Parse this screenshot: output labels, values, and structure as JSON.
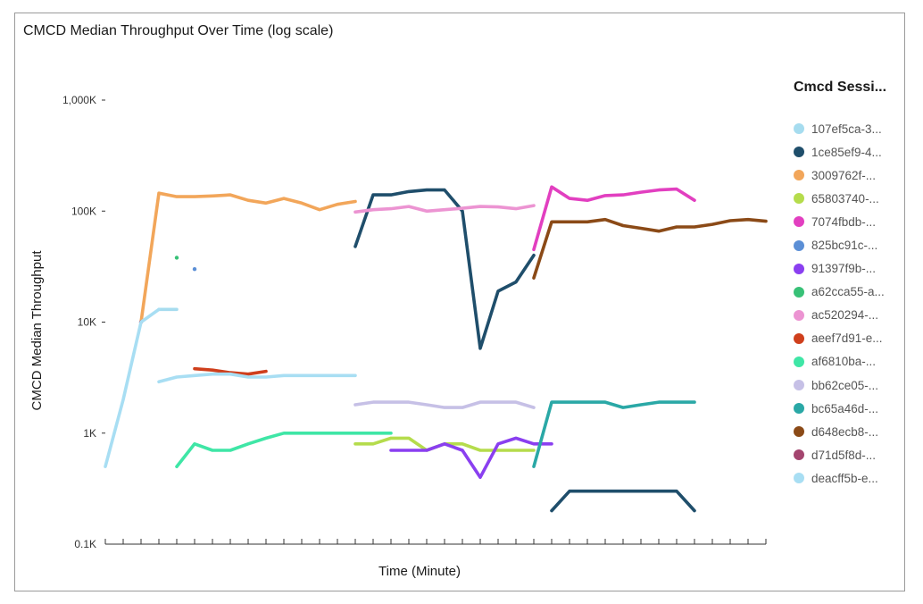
{
  "chart_data": {
    "type": "line",
    "title": "CMCD Median Throughput Over Time (log scale)",
    "xlabel": "Time (Minute)",
    "ylabel": "CMCD Median Throughput",
    "y_scale": "log",
    "ylim": [
      100,
      1000000
    ],
    "y_ticks": [
      {
        "value": 100,
        "label": "0.1K"
      },
      {
        "value": 1000,
        "label": "1K"
      },
      {
        "value": 10000,
        "label": "10K"
      },
      {
        "value": 100000,
        "label": "100K"
      },
      {
        "value": 1000000,
        "label": "1,000K"
      }
    ],
    "x_tick_count": 38,
    "xlim": [
      0,
      37
    ],
    "legend_title": "Cmcd Sessi...",
    "legend_position": "right",
    "grid": false,
    "series": [
      {
        "name": "107ef5ca-3...",
        "color": "#a6dcef",
        "x": [
          3,
          4
        ],
        "y": [
          13000,
          13000
        ]
      },
      {
        "name": "1ce85ef9-4...",
        "color": "#1f4e6b",
        "segments": [
          {
            "x": [
              14,
              15,
              16,
              17,
              18,
              19,
              20,
              21,
              22,
              23,
              24
            ],
            "y": [
              48000,
              140000,
              140000,
              150000,
              155000,
              155000,
              100000,
              5800,
              19000,
              23000,
              40000
            ]
          },
          {
            "x": [
              25,
              26,
              27,
              28,
              29,
              30,
              31,
              32,
              33
            ],
            "y": [
              200,
              300,
              300,
              300,
              300,
              300,
              300,
              300,
              200
            ]
          }
        ]
      },
      {
        "name": "3009762f-...",
        "color": "#f2a65a",
        "x": [
          2,
          3,
          4,
          5,
          6,
          7,
          8,
          9,
          10,
          11,
          12,
          13,
          14
        ],
        "y": [
          10000,
          145000,
          135000,
          135000,
          137000,
          140000,
          125000,
          118000,
          130000,
          118000,
          103000,
          115000,
          122000
        ]
      },
      {
        "name": "65803740-...",
        "color": "#b5dc4c",
        "x": [
          14,
          15,
          16,
          17,
          18,
          19,
          20,
          21,
          22,
          23,
          24
        ],
        "y": [
          800,
          800,
          900,
          900,
          700,
          800,
          800,
          700,
          700,
          700,
          700
        ]
      },
      {
        "name": "7074fbdb-...",
        "color": "#e23fc0",
        "x": [
          24,
          25,
          26,
          27,
          28,
          29,
          30,
          31,
          32,
          33
        ],
        "y": [
          45000,
          165000,
          130000,
          125000,
          138000,
          140000,
          148000,
          155000,
          158000,
          125000
        ]
      },
      {
        "name": "825bc91c-...",
        "color": "#5b8fd6",
        "x": [
          5
        ],
        "y": [
          30000
        ]
      },
      {
        "name": "91397f9b-...",
        "color": "#8a3ff0",
        "x": [
          16,
          17,
          18,
          19,
          20,
          21,
          22,
          23,
          24,
          25
        ],
        "y": [
          700,
          700,
          700,
          800,
          700,
          400,
          800,
          900,
          800,
          800
        ]
      },
      {
        "name": "a62cca55-a...",
        "color": "#38c177",
        "x": [
          4
        ],
        "y": [
          38000
        ]
      },
      {
        "name": "ac520294-...",
        "color": "#ec94d2",
        "x": [
          14,
          15,
          16,
          17,
          18,
          19,
          20,
          21,
          22,
          23,
          24
        ],
        "y": [
          98000,
          103000,
          105000,
          110000,
          100000,
          103000,
          106000,
          110000,
          109000,
          105000,
          112000
        ]
      },
      {
        "name": "aeef7d91-e...",
        "color": "#cf3f1c",
        "x": [
          5,
          6,
          7,
          8,
          9
        ],
        "y": [
          3800,
          3700,
          3500,
          3400,
          3600
        ]
      },
      {
        "name": "af6810ba-...",
        "color": "#3fe6a6",
        "x": [
          4,
          5,
          6,
          7,
          8,
          9,
          10,
          11,
          12,
          13,
          14,
          15,
          16
        ],
        "y": [
          500,
          800,
          700,
          700,
          800,
          900,
          1000,
          1000,
          1000,
          1000,
          1000,
          1000,
          1000
        ]
      },
      {
        "name": "bb62ce05-...",
        "color": "#c6c0e6",
        "x": [
          14,
          15,
          16,
          17,
          18,
          19,
          20,
          21,
          22,
          23,
          24
        ],
        "y": [
          1800,
          1900,
          1900,
          1900,
          1800,
          1700,
          1700,
          1900,
          1900,
          1900,
          1700
        ]
      },
      {
        "name": "bc65a46d-...",
        "color": "#2aa8a6",
        "x": [
          24,
          25,
          26,
          27,
          28,
          29,
          30,
          31,
          32,
          33
        ],
        "y": [
          500,
          1900,
          1900,
          1900,
          1900,
          1700,
          1800,
          1900,
          1900,
          1900
        ]
      },
      {
        "name": "d648ecb8-...",
        "color": "#8b4a17",
        "x": [
          24,
          25,
          26,
          27,
          28,
          29,
          30,
          31,
          32,
          33,
          34,
          35,
          36,
          37
        ],
        "y": [
          25000,
          80000,
          80000,
          80000,
          84000,
          74000,
          70000,
          66000,
          72000,
          72000,
          76000,
          82000,
          84000,
          81000
        ]
      },
      {
        "name": "d71d5f8d-...",
        "color": "#a4456f",
        "x": [
          2
        ],
        "y": [
          10000
        ]
      },
      {
        "name": "deacff5b-e...",
        "color": "#a8def3",
        "segments": [
          {
            "x": [
              0,
              1,
              2,
              3
            ],
            "y": [
              500,
              2000,
              10000,
              13000
            ]
          },
          {
            "x": [
              3,
              4,
              5,
              6,
              7,
              8,
              9,
              10,
              11,
              12,
              13,
              14
            ],
            "y": [
              2900,
              3200,
              3300,
              3400,
              3400,
              3200,
              3200,
              3300,
              3300,
              3300,
              3300,
              3300
            ]
          }
        ]
      }
    ]
  }
}
